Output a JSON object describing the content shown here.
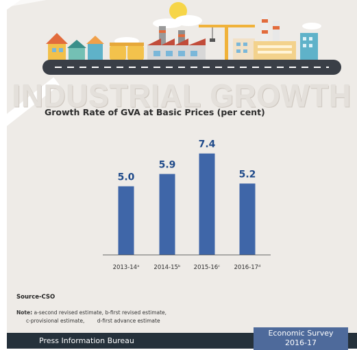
{
  "infographic": {
    "heading": "INDUSTRIAL GROWTH",
    "source": "Source-CSO",
    "note_label": "Note:",
    "note_a": "a-second revised estimate,",
    "note_b": "b-first revised estimate,",
    "note_c": "c-provisional estimate,",
    "note_d": "d-first advance estimate"
  },
  "footer": {
    "left": "Press Information Bureau",
    "right_line1": "Economic Survey",
    "right_line2": "2016-17"
  },
  "colors": {
    "bar": "#3f66a8",
    "value_label": "#1f4a8a",
    "background": "#eeebe7",
    "footer": "#25313b",
    "footer_badge": "#4e6a9b"
  },
  "chart_data": {
    "type": "bar",
    "title": "Growth Rate of GVA at Basic Prices (per cent)",
    "categories": [
      "2013-14ᵃ",
      "2014-15ᵇ",
      "2015-16ᶜ",
      "2016-17ᵈ"
    ],
    "values": [
      5.0,
      5.9,
      7.4,
      5.2
    ],
    "value_labels": [
      "5.0",
      "5.9",
      "7.4",
      "5.2"
    ],
    "ylim": [
      0,
      8
    ],
    "xlabel": "",
    "ylabel": "",
    "grid": false,
    "legend": "none"
  }
}
